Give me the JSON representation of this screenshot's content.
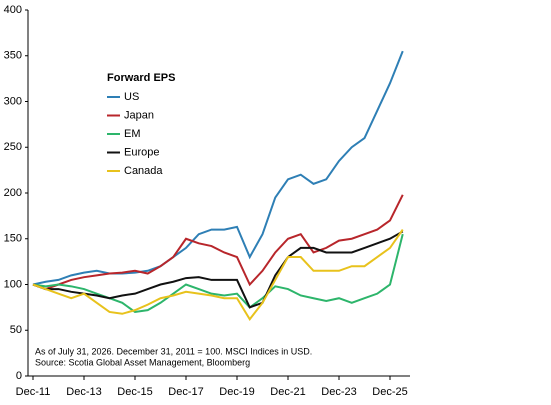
{
  "chart_data": {
    "type": "line",
    "legend_title": "Forward EPS",
    "notes": [
      "As of July 31, 2026.  December 31, 2011 = 100.  MSCI Indices in USD.",
      "Source: Scotia Global Asset Management, Bloomberg"
    ],
    "categories": [
      "Dec-11",
      null,
      null,
      null,
      "Dec-13",
      null,
      null,
      null,
      "Dec-15",
      null,
      null,
      null,
      "Dec-17",
      null,
      null,
      null,
      "Dec-19",
      null,
      null,
      null,
      "Dec-21",
      null,
      null,
      null,
      "Dec-23",
      null,
      null,
      null,
      "Dec-25",
      null
    ],
    "ylim": [
      0,
      400
    ],
    "yticks": [
      0,
      50,
      100,
      150,
      200,
      250,
      300,
      350,
      400
    ],
    "legend": "upper-left",
    "series": [
      {
        "name": "US",
        "color": "#2e7fb5",
        "values": [
          100,
          103,
          105,
          110,
          113,
          115,
          112,
          112,
          113,
          115,
          120,
          130,
          140,
          155,
          160,
          160,
          163,
          130,
          155,
          195,
          215,
          220,
          210,
          215,
          235,
          250,
          260,
          290,
          320,
          355
        ]
      },
      {
        "name": "Japan",
        "color": "#b8262b",
        "values": [
          100,
          95,
          100,
          105,
          108,
          110,
          112,
          113,
          115,
          112,
          120,
          130,
          150,
          145,
          142,
          135,
          130,
          100,
          115,
          135,
          150,
          155,
          135,
          140,
          148,
          150,
          155,
          160,
          170,
          198
        ]
      },
      {
        "name": "EM",
        "color": "#2db56b",
        "values": [
          100,
          98,
          100,
          98,
          95,
          90,
          85,
          80,
          70,
          72,
          80,
          90,
          100,
          95,
          90,
          88,
          90,
          75,
          85,
          98,
          95,
          88,
          85,
          82,
          85,
          80,
          85,
          90,
          100,
          155
        ]
      },
      {
        "name": "Europe",
        "color": "#111111",
        "values": [
          100,
          95,
          95,
          92,
          90,
          88,
          85,
          88,
          90,
          95,
          100,
          103,
          107,
          108,
          105,
          105,
          105,
          75,
          80,
          110,
          130,
          140,
          140,
          135,
          135,
          135,
          140,
          145,
          150,
          158
        ]
      },
      {
        "name": "Canada",
        "color": "#e8c21c",
        "values": [
          100,
          95,
          90,
          85,
          90,
          80,
          70,
          68,
          72,
          78,
          85,
          88,
          92,
          90,
          88,
          85,
          85,
          62,
          80,
          105,
          130,
          130,
          115,
          115,
          115,
          120,
          120,
          130,
          140,
          160
        ]
      }
    ]
  }
}
